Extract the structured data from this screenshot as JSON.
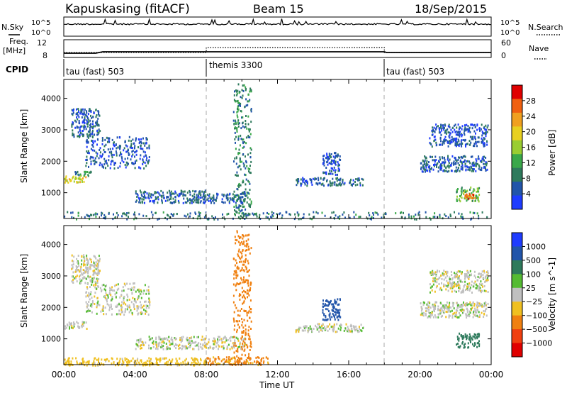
{
  "header": {
    "station": "Kapuskasing (fitACF)",
    "beam": "Beam 15",
    "date": "18/Sep/2015"
  },
  "strip_labels": {
    "nsky": "N.Sky",
    "nsearch": "N.Search",
    "freq": "Freq.",
    "freq_unit": "[MHz]",
    "nave": "Nave",
    "cpid": "CPID"
  },
  "strip_ticks": {
    "noise_left": [
      "10^5",
      "10^0"
    ],
    "noise_right": [
      "10^5",
      "10^0"
    ],
    "freq_left": [
      "12",
      "8"
    ],
    "nave_right": [
      "60",
      "0"
    ]
  },
  "cpid_segments": [
    {
      "label": "tau (fast) 503",
      "start_hour": 0
    },
    {
      "label": "themis 3300",
      "start_hour": 8
    },
    {
      "label": "tau (fast) 503",
      "start_hour": 18
    }
  ],
  "chart_data": [
    {
      "type": "heatmap",
      "ylabel": "Slant Range [km]",
      "xlim": [
        0,
        24
      ],
      "ylim": [
        180,
        4600
      ],
      "y_ticks": [
        1000,
        2000,
        3000,
        4000
      ],
      "colorbar": {
        "label": "Power [dB]",
        "range": [
          0,
          32
        ],
        "ticks": [
          4,
          8,
          12,
          16,
          20,
          24,
          28
        ],
        "colors": [
          "#1f3cff",
          "#2255aa",
          "#2e7a5c",
          "#3aa84a",
          "#9acd32",
          "#e8d020",
          "#f0a020",
          "#f06010",
          "#e00000"
        ]
      },
      "echo_regions": [
        {
          "t0": 0.0,
          "t1": 1.3,
          "r0": 1350,
          "r1": 1580,
          "value": 19
        },
        {
          "t0": 0.6,
          "t1": 1.6,
          "r0": 1550,
          "r1": 1700,
          "value": 10
        },
        {
          "t0": 0.4,
          "t1": 2.0,
          "r0": 2800,
          "r1": 3700,
          "value": 6
        },
        {
          "t0": 1.2,
          "t1": 4.8,
          "r0": 1800,
          "r1": 2800,
          "value": 5
        },
        {
          "t0": 4.0,
          "t1": 8.0,
          "r0": 700,
          "r1": 1100,
          "value": 6
        },
        {
          "t0": 8.0,
          "t1": 10.2,
          "r0": 700,
          "r1": 1000,
          "value": 6
        },
        {
          "t0": 9.5,
          "t1": 10.5,
          "r0": 200,
          "r1": 4500,
          "value": 9
        },
        {
          "t0": 13.0,
          "t1": 16.8,
          "r0": 1250,
          "r1": 1500,
          "value": 6
        },
        {
          "t0": 14.5,
          "t1": 15.5,
          "r0": 1600,
          "r1": 2300,
          "value": 5
        },
        {
          "t0": 20.0,
          "t1": 23.8,
          "r0": 1700,
          "r1": 2200,
          "value": 6
        },
        {
          "t0": 20.5,
          "t1": 23.8,
          "r0": 2500,
          "r1": 3200,
          "value": 5
        },
        {
          "t0": 22.0,
          "t1": 23.3,
          "r0": 750,
          "r1": 1200,
          "value": 14
        },
        {
          "t0": 22.5,
          "t1": 23.2,
          "r0": 820,
          "r1": 980,
          "value": 25
        },
        {
          "t0": 0.0,
          "t1": 24.0,
          "r0": 180,
          "r1": 420,
          "value": 8
        }
      ]
    },
    {
      "type": "heatmap",
      "ylabel": "Slant Range [km]",
      "xlabel": "Time UT",
      "xlim": [
        0,
        24
      ],
      "ylim": [
        180,
        4600
      ],
      "y_ticks": [
        1000,
        2000,
        3000,
        4000
      ],
      "x_ticks": [
        "00:00",
        "04:00",
        "08:00",
        "12:00",
        "16:00",
        "20:00",
        "00:00"
      ],
      "colorbar": {
        "label": "Velocity [m s^-1]",
        "tick_labels": [
          "1000",
          "500",
          "100",
          "25",
          "−25",
          "−100",
          "−500",
          "−1000"
        ],
        "colors": [
          "#1f3cff",
          "#2255aa",
          "#2e7a5c",
          "#55bb33",
          "#c0c0c0",
          "#f0c020",
          "#f08010",
          "#f04010",
          "#e00000"
        ]
      },
      "echo_regions": [
        {
          "t0": 0.0,
          "t1": 1.3,
          "r0": 1350,
          "r1": 1580,
          "value": 0
        },
        {
          "t0": 0.4,
          "t1": 2.0,
          "r0": 2800,
          "r1": 3700,
          "value": 0
        },
        {
          "t0": 1.2,
          "t1": 4.8,
          "r0": 1800,
          "r1": 2800,
          "value": 0
        },
        {
          "t0": 4.0,
          "t1": 10.2,
          "r0": 700,
          "r1": 1100,
          "value": 0
        },
        {
          "t0": 8.0,
          "t1": 11.5,
          "r0": 200,
          "r1": 450,
          "value": -120
        },
        {
          "t0": 9.5,
          "t1": 10.5,
          "r0": 200,
          "r1": 4500,
          "value": -300
        },
        {
          "t0": 13.0,
          "t1": 16.8,
          "r0": 1250,
          "r1": 1500,
          "value": 0
        },
        {
          "t0": 14.5,
          "t1": 15.5,
          "r0": 1600,
          "r1": 2300,
          "value": 600
        },
        {
          "t0": 20.0,
          "t1": 23.8,
          "r0": 1700,
          "r1": 2200,
          "value": 0
        },
        {
          "t0": 20.5,
          "t1": 23.8,
          "r0": 2500,
          "r1": 3200,
          "value": 0
        },
        {
          "t0": 22.0,
          "t1": 23.3,
          "r0": 750,
          "r1": 1200,
          "value": 300
        },
        {
          "t0": 0.0,
          "t1": 8.0,
          "r0": 180,
          "r1": 420,
          "value": -60
        }
      ]
    }
  ]
}
